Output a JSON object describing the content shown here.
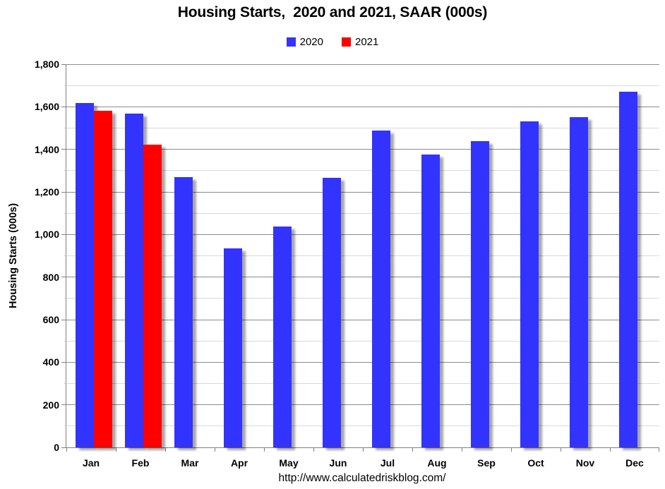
{
  "page": {
    "footer_url": "http://www.calculatedriskblog.com/"
  },
  "chart_data": {
    "type": "bar",
    "title": "Housing Starts,  2020 and 2021, SAAR (000s)",
    "categories": [
      "Jan",
      "Feb",
      "Mar",
      "Apr",
      "May",
      "Jun",
      "Jul",
      "Aug",
      "Sep",
      "Oct",
      "Nov",
      "Dec"
    ],
    "series": [
      {
        "name": "2020",
        "color": "#3333FF",
        "values": [
          1617,
          1567,
          1269,
          934,
          1038,
          1265,
          1490,
          1376,
          1440,
          1530,
          1553,
          1670
        ]
      },
      {
        "name": "2021",
        "color": "#FF0000",
        "values": [
          1580,
          1421
        ]
      }
    ],
    "xlabel": "",
    "ylabel": "Housing Starts (000s)",
    "ylim": [
      0,
      1800
    ],
    "ytick_major": 200,
    "ytick_minor": 100,
    "grid": true,
    "legend_position": "top-center"
  },
  "colors": {
    "series_2020": "#3333FF",
    "series_2021": "#FF0000",
    "major_gridline": "#8C8C8C",
    "minor_gridline": "#D9D9D9",
    "axis_line": "#7F7F7F",
    "text": "#000000",
    "background": "#FFFFFF"
  }
}
